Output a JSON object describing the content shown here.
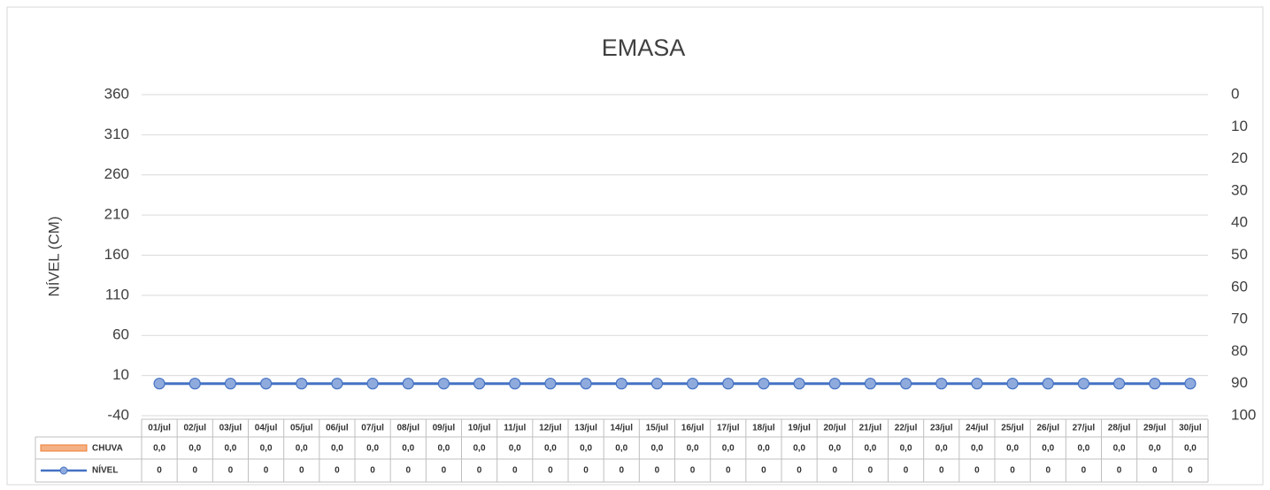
{
  "chart_data": {
    "type": "bar",
    "title": "EMASA",
    "ylabel": "NÍVEL (CM)",
    "categories": [
      "01/jul",
      "02/jul",
      "03/jul",
      "04/jul",
      "05/jul",
      "06/jul",
      "07/jul",
      "08/jul",
      "09/jul",
      "10/jul",
      "11/jul",
      "12/jul",
      "13/jul",
      "14/jul",
      "15/jul",
      "16/jul",
      "17/jul",
      "18/jul",
      "19/jul",
      "20/jul",
      "21/jul",
      "22/jul",
      "23/jul",
      "24/jul",
      "25/jul",
      "26/jul",
      "27/jul",
      "28/jul",
      "29/jul",
      "30/jul"
    ],
    "series": [
      {
        "name": "CHUVA",
        "type": "bar",
        "axis": "y2",
        "color": "#f4b183",
        "values": [
          0,
          0,
          0,
          0,
          0,
          0,
          0,
          0,
          0,
          0,
          0,
          0,
          0,
          0,
          0,
          0,
          0,
          0,
          0,
          0,
          0,
          0,
          0,
          0,
          0,
          0,
          0,
          0,
          0,
          0
        ],
        "value_labels": [
          "0,0",
          "0,0",
          "0,0",
          "0,0",
          "0,0",
          "0,0",
          "0,0",
          "0,0",
          "0,0",
          "0,0",
          "0,0",
          "0,0",
          "0,0",
          "0,0",
          "0,0",
          "0,0",
          "0,0",
          "0,0",
          "0,0",
          "0,0",
          "0,0",
          "0,0",
          "0,0",
          "0,0",
          "0,0",
          "0,0",
          "0,0",
          "0,0",
          "0,0",
          "0,0"
        ]
      },
      {
        "name": "NÍVEL",
        "type": "line",
        "color": "#4472c4",
        "values": [
          0,
          0,
          0,
          0,
          0,
          0,
          0,
          0,
          0,
          0,
          0,
          0,
          0,
          0,
          0,
          0,
          0,
          0,
          0,
          0,
          0,
          0,
          0,
          0,
          0,
          0,
          0,
          0,
          0,
          0
        ]
      }
    ],
    "ylim": [
      -40,
      360
    ],
    "yticks": [
      -40,
      10,
      60,
      110,
      160,
      210,
      260,
      310,
      360
    ],
    "y2lim": [
      0,
      100
    ],
    "y2ticks": [
      0,
      10,
      20,
      30,
      40,
      50,
      60,
      70,
      80,
      90,
      100
    ],
    "y2_reversed": true,
    "grid": true,
    "data_table": true
  }
}
